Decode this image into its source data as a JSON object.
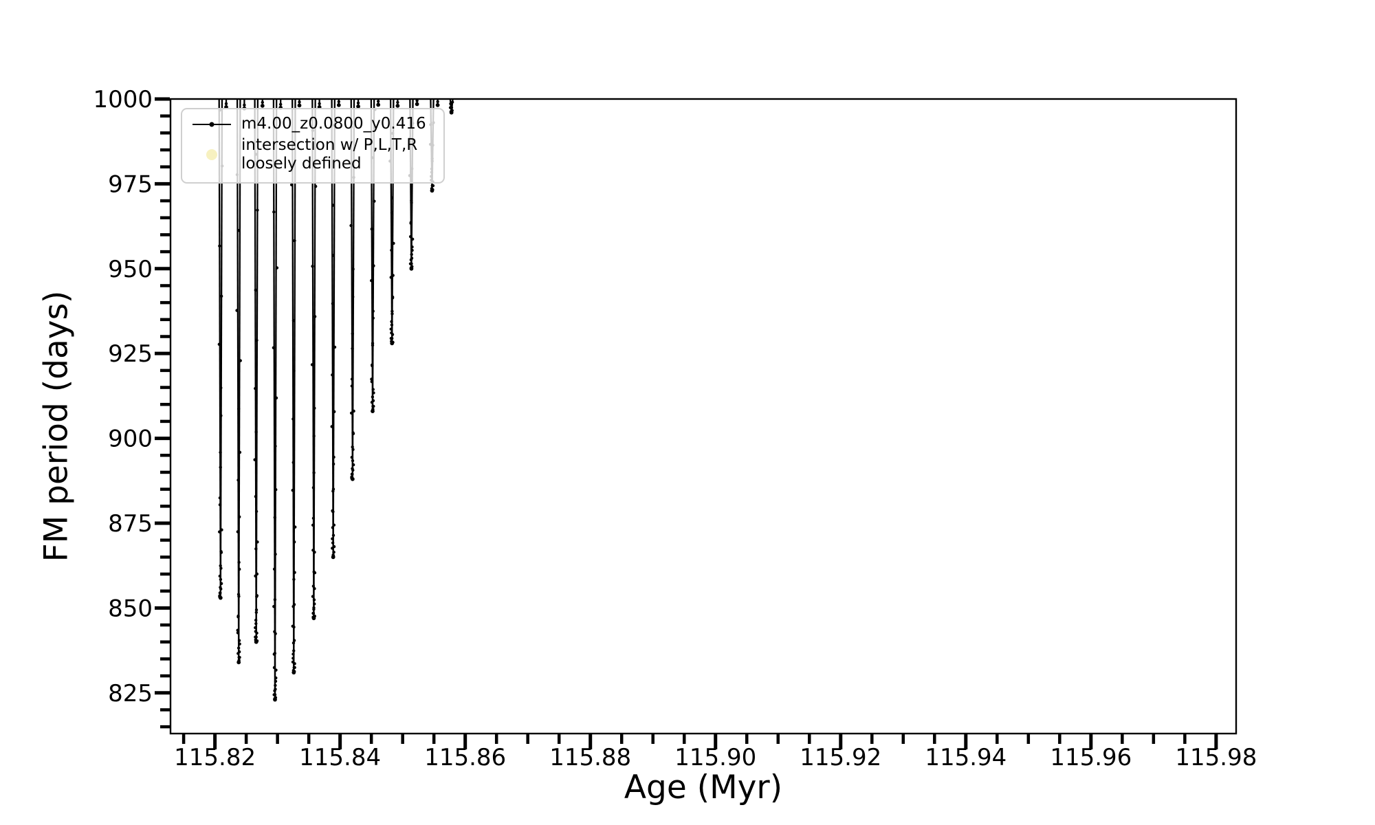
{
  "figure": {
    "background": "#ffffff",
    "axis_color": "#000000"
  },
  "legend": {
    "position": "upper-left",
    "entries": [
      {
        "label": "m4.00_z0.0800_y0.416",
        "marker": "line-with-point",
        "color": "#000000"
      },
      {
        "label_line1": "intersection w/ P,L,T,R",
        "label_line2": "loosely defined",
        "marker": "circle",
        "color": "#F0E68C"
      }
    ]
  },
  "chart_data": {
    "type": "line",
    "title": "",
    "xlabel": "Age (Myr)",
    "ylabel": "FM period (days)",
    "xlim": [
      115.8129,
      115.9832
    ],
    "ylim": [
      813,
      1000
    ],
    "grid": false,
    "legend_position": "upper-left",
    "x_major_values": [
      115.82,
      115.84,
      115.86,
      115.88,
      115.9,
      115.92,
      115.94,
      115.96,
      115.98
    ],
    "x_tick_labels": [
      "115.82",
      "115.84",
      "115.86",
      "115.88",
      "115.90",
      "115.92",
      "115.94",
      "115.96",
      "115.98"
    ],
    "x_minor_step": 0.005,
    "y_major_values": [
      825,
      850,
      875,
      900,
      925,
      950,
      975,
      1000
    ],
    "y_tick_labels": [
      "825",
      "850",
      "875",
      "900",
      "925",
      "950",
      "975",
      "1000"
    ],
    "y_minor_step": 5,
    "series": [
      {
        "name": "m4.00_z0.0800_y0.416",
        "color": "#000000",
        "marker": "point",
        "description": "FM period vs age: narrow vertical dips below 1000 days at successive pulses; line is above 1000 (off-scale) between dips",
        "dips": [
          {
            "age": 115.8209,
            "min_period": 853
          },
          {
            "age": 115.8238,
            "min_period": 834
          },
          {
            "age": 115.8266,
            "min_period": 840
          },
          {
            "age": 115.8296,
            "min_period": 823
          },
          {
            "age": 115.8326,
            "min_period": 831
          },
          {
            "age": 115.8358,
            "min_period": 847
          },
          {
            "age": 115.8389,
            "min_period": 865
          },
          {
            "age": 115.842,
            "min_period": 888
          },
          {
            "age": 115.8452,
            "min_period": 908
          },
          {
            "age": 115.8483,
            "min_period": 928
          },
          {
            "age": 115.8514,
            "min_period": 950
          },
          {
            "age": 115.8547,
            "min_period": 973
          },
          {
            "age": 115.8578,
            "min_period": 996
          }
        ],
        "secondary_dips": [
          {
            "age": 115.8218,
            "min_period": 997.6
          },
          {
            "age": 115.8247,
            "min_period": 997.2
          },
          {
            "age": 115.8276,
            "min_period": 998.0
          },
          {
            "age": 115.8305,
            "min_period": 997.4
          },
          {
            "age": 115.8335,
            "min_period": 998.1
          },
          {
            "age": 115.8367,
            "min_period": 997.6
          },
          {
            "age": 115.8398,
            "min_period": 998.2
          },
          {
            "age": 115.8429,
            "min_period": 997.8
          },
          {
            "age": 115.8461,
            "min_period": 998.3
          },
          {
            "age": 115.8492,
            "min_period": 998.0
          },
          {
            "age": 115.8523,
            "min_period": 998.5
          },
          {
            "age": 115.8556,
            "min_period": 998.2
          }
        ]
      }
    ]
  }
}
